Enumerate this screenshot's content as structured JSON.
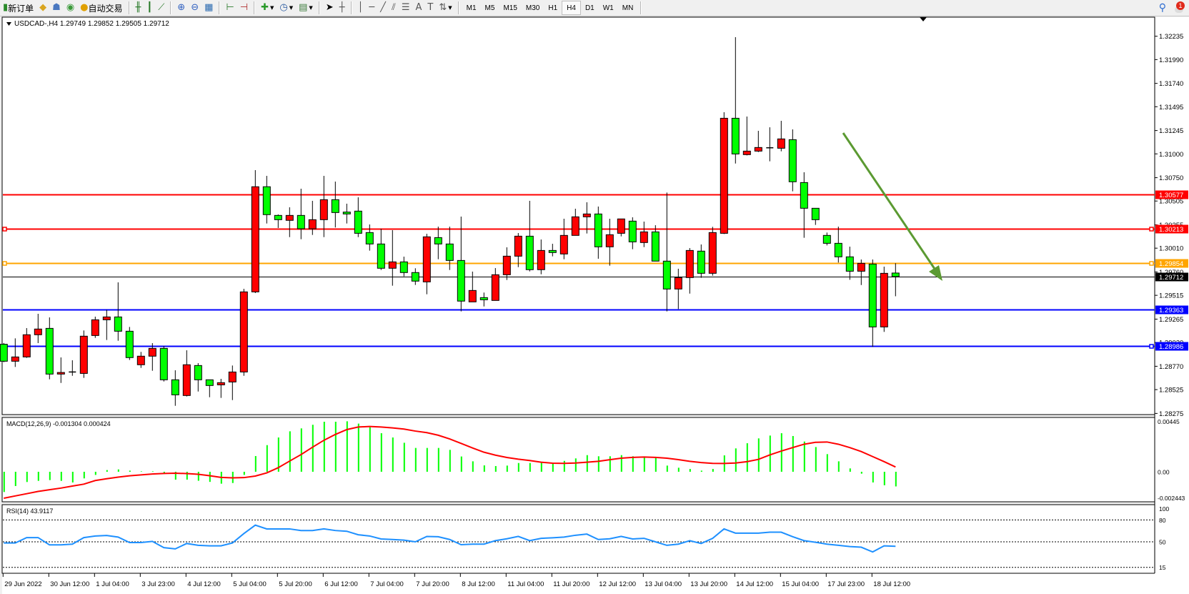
{
  "toolbar": {
    "new_order": "新订单",
    "auto_trading": "自动交易",
    "periods": [
      "M1",
      "M5",
      "M15",
      "M30",
      "H1",
      "H4",
      "D1",
      "W1",
      "MN"
    ],
    "active_period": "H4",
    "notification_count": "1"
  },
  "chart": {
    "header": "USDCAD-,H4  1.29749 1.29852 1.29505 1.29712",
    "up_color": "#ff0000",
    "down_color": "#00ff00",
    "background": "#ffffff"
  },
  "chart_data": [
    {
      "type": "candlestick",
      "symbol": "USDCAD-",
      "timeframe": "H4",
      "ylim": [
        1.28275,
        1.32235
      ],
      "y_ticks": [
        "1.32235",
        "1.31990",
        "1.31740",
        "1.31495",
        "1.31245",
        "1.31000",
        "1.30750",
        "1.30505",
        "1.30255",
        "1.30010",
        "1.29760",
        "1.29515",
        "1.29265",
        "1.29020",
        "1.28770",
        "1.28525",
        "1.28275"
      ],
      "x_tick_labels": [
        "29 Jun 2022",
        "30 Jun 12:00",
        "1 Jul 04:00",
        "3 Jul 23:00",
        "4 Jul 12:00",
        "5 Jul 04:00",
        "5 Jul 20:00",
        "6 Jul 12:00",
        "7 Jul 04:00",
        "7 Jul 20:00",
        "8 Jul 12:00",
        "11 Jul 04:00",
        "11 Jul 20:00",
        "12 Jul 12:00",
        "13 Jul 04:00",
        "13 Jul 20:00",
        "14 Jul 12:00",
        "15 Jul 04:00",
        "17 Jul 23:00",
        "18 Jul 12:00"
      ],
      "ohlc_fields": [
        "open",
        "high",
        "low",
        "close"
      ],
      "ohlc": [
        [
          1.29001,
          1.29014,
          1.28813,
          1.28823
        ],
        [
          1.28823,
          1.29063,
          1.28763,
          1.28868
        ],
        [
          1.28868,
          1.29171,
          1.28858,
          1.29101
        ],
        [
          1.29101,
          1.29321,
          1.29013,
          1.29161
        ],
        [
          1.29168,
          1.29283,
          1.28633,
          1.28688
        ],
        [
          1.28688,
          1.28863,
          1.28595,
          1.28705
        ],
        [
          1.2871,
          1.28833,
          1.2867,
          1.2871
        ],
        [
          1.28695,
          1.29146,
          1.28648,
          1.29086
        ],
        [
          1.29093,
          1.29291,
          1.29068,
          1.29258
        ],
        [
          1.29258,
          1.29363,
          1.29046,
          1.29288
        ],
        [
          1.29288,
          1.29651,
          1.29038,
          1.29138
        ],
        [
          1.29138,
          1.29183,
          1.28836,
          1.28861
        ],
        [
          1.28786,
          1.28921,
          1.28753,
          1.28876
        ],
        [
          1.28876,
          1.29013,
          1.28723,
          1.28958
        ],
        [
          1.28958,
          1.28983,
          1.2861,
          1.28628
        ],
        [
          1.28628,
          1.28728,
          1.28355,
          1.2847
        ],
        [
          1.28463,
          1.28938,
          1.28453,
          1.28786
        ],
        [
          1.28778,
          1.28803,
          1.28505,
          1.28628
        ],
        [
          1.28628,
          1.28628,
          1.28445,
          1.28568
        ],
        [
          1.28575,
          1.28638,
          1.28438,
          1.28598
        ],
        [
          1.28605,
          1.28778,
          1.28415,
          1.2871
        ],
        [
          1.2871,
          1.29583,
          1.2867,
          1.29551
        ],
        [
          1.29551,
          1.30829,
          1.29539,
          1.30655
        ],
        [
          1.30655,
          1.30769,
          1.30269,
          1.30362
        ],
        [
          1.30354,
          1.30364,
          1.30222,
          1.30309
        ],
        [
          1.30302,
          1.30439,
          1.30126,
          1.30354
        ],
        [
          1.30354,
          1.30634,
          1.30104,
          1.30214
        ],
        [
          1.30214,
          1.30507,
          1.30149,
          1.30309
        ],
        [
          1.30309,
          1.30769,
          1.30126,
          1.30519
        ],
        [
          1.30519,
          1.30709,
          1.30227,
          1.30384
        ],
        [
          1.30389,
          1.30477,
          1.30269,
          1.30369
        ],
        [
          1.30399,
          1.30544,
          1.30126,
          1.30166
        ],
        [
          1.30174,
          1.30259,
          1.29984,
          1.30054
        ],
        [
          1.30054,
          1.30214,
          1.29781,
          1.29799
        ],
        [
          1.29799,
          1.30199,
          1.29616,
          1.29866
        ],
        [
          1.29866,
          1.29921,
          1.29714,
          1.29754
        ],
        [
          1.29754,
          1.29799,
          1.29624,
          1.29664
        ],
        [
          1.29656,
          1.30161,
          1.29526,
          1.30129
        ],
        [
          1.30121,
          1.30236,
          1.29894,
          1.30054
        ],
        [
          1.30054,
          1.30236,
          1.29781,
          1.29881
        ],
        [
          1.29881,
          1.30342,
          1.29346,
          1.29454
        ],
        [
          1.29446,
          1.29764,
          1.29446,
          1.29566
        ],
        [
          1.29491,
          1.29544,
          1.29398,
          1.29468
        ],
        [
          1.29461,
          1.29801,
          1.29461,
          1.29731
        ],
        [
          1.29731,
          1.30019,
          1.29676,
          1.29926
        ],
        [
          1.29926,
          1.30169,
          1.29811,
          1.30136
        ],
        [
          1.30136,
          1.30507,
          1.29766,
          1.29784
        ],
        [
          1.29784,
          1.30101,
          1.29736,
          1.29986
        ],
        [
          1.29986,
          1.30056,
          1.29924,
          1.29964
        ],
        [
          1.29949,
          1.30319,
          1.29894,
          1.30144
        ],
        [
          1.30144,
          1.30424,
          1.30144,
          1.30339
        ],
        [
          1.30339,
          1.30492,
          1.30164,
          1.30369
        ],
        [
          1.30369,
          1.30447,
          1.29899,
          1.30024
        ],
        [
          1.30024,
          1.30319,
          1.29826,
          1.30151
        ],
        [
          1.30166,
          1.30317,
          1.30134,
          1.30317
        ],
        [
          1.30294,
          1.30334,
          1.29999,
          1.30076
        ],
        [
          1.30069,
          1.30289,
          1.30021,
          1.30181
        ],
        [
          1.30181,
          1.30251,
          1.29874,
          1.29874
        ],
        [
          1.29874,
          1.30594,
          1.29346,
          1.29581
        ],
        [
          1.29581,
          1.29794,
          1.29371,
          1.29701
        ],
        [
          1.29701,
          1.30011,
          1.29533,
          1.29986
        ],
        [
          1.29979,
          1.30049,
          1.29699,
          1.29746
        ],
        [
          1.29746,
          1.30234,
          1.29721,
          1.30174
        ],
        [
          1.30166,
          1.31437,
          1.30159,
          1.31374
        ],
        [
          1.31374,
          1.32225,
          1.30899,
          1.30999
        ],
        [
          1.30992,
          1.31392,
          1.30984,
          1.31029
        ],
        [
          1.31029,
          1.31242,
          1.31019,
          1.31067
        ],
        [
          1.31064,
          1.31279,
          1.30922,
          1.31064
        ],
        [
          1.31059,
          1.31347,
          1.31027,
          1.31157
        ],
        [
          1.31149,
          1.31257,
          1.30607,
          1.30707
        ],
        [
          1.30699,
          1.30807,
          1.30119,
          1.30429
        ],
        [
          1.30429,
          1.30429,
          1.30254,
          1.30309
        ],
        [
          1.30144,
          1.30174,
          1.30039,
          1.30061
        ],
        [
          1.30061,
          1.30236,
          1.29859,
          1.29919
        ],
        [
          1.29919,
          1.30026,
          1.29678,
          1.29768
        ],
        [
          1.29768,
          1.29891,
          1.29623,
          1.29851
        ],
        [
          1.29843,
          1.29891,
          1.28973,
          1.29183
        ],
        [
          1.29183,
          1.29816,
          1.29131,
          1.29746
        ],
        [
          1.29749,
          1.29852,
          1.29505,
          1.29712
        ]
      ],
      "horizontal_lines": [
        {
          "price": "1.30577",
          "color": "#ff0000",
          "markers": false
        },
        {
          "price": "1.30213",
          "color": "#ff0000",
          "markers": true
        },
        {
          "price": "1.29854",
          "color": "#ffa500",
          "markers": true
        },
        {
          "price": "1.29712",
          "color": "#000000",
          "markers": false
        },
        {
          "price": "1.29363",
          "color": "#0000ff",
          "markers": false
        },
        {
          "price": "1.28986",
          "color": "#0000ff",
          "markers": true
        }
      ],
      "trend_arrow": {
        "color": "#5b9a32",
        "direction": "down"
      }
    },
    {
      "type": "bar+line",
      "label": "MACD(12,26,9) -0.001304 0.000424",
      "y_ticks": [
        "0.00445",
        "0.00",
        "-0.002443"
      ],
      "ylim": [
        -0.002443,
        0.00445
      ],
      "histogram_color": "#00ff00",
      "signal_color": "#ff0000",
      "main": [
        -0.0018,
        -0.00127,
        -0.00091,
        -0.00081,
        -0.00074,
        -0.00081,
        -0.00095,
        -0.00059,
        -0.00028,
        0.00015,
        0.00021,
        0.0001,
        4e-05,
        4e-05,
        -0.00017,
        -0.0007,
        -0.0007,
        -0.0008,
        -0.0009,
        -0.00106,
        -0.001,
        -0.00028,
        0.0014,
        0.00237,
        0.00305,
        0.0036,
        0.00386,
        0.00418,
        0.00445,
        0.00445,
        0.00449,
        0.00428,
        0.00396,
        0.00343,
        0.00305,
        0.00258,
        0.00212,
        0.00212,
        0.00212,
        0.00195,
        0.00136,
        0.00093,
        0.00057,
        0.00051,
        0.00055,
        0.00078,
        0.00078,
        0.00083,
        0.00072,
        0.00097,
        0.00119,
        0.00148,
        0.00138,
        0.00138,
        0.00148,
        0.00138,
        0.00131,
        0.00127,
        0.00055,
        0.00036,
        0.00025,
        0.0001,
        0.00025,
        0.00146,
        0.00208,
        0.00254,
        0.00297,
        0.00322,
        0.00343,
        0.00318,
        0.00269,
        0.0022,
        0.00157,
        0.00093,
        0.0003,
        -0.00017,
        -0.00095,
        -0.0012,
        -0.001304
      ],
      "signal": [
        -0.00235,
        -0.00215,
        -0.00195,
        -0.00175,
        -0.0016,
        -0.00145,
        -0.00127,
        -0.0011,
        -0.00078,
        -0.00062,
        -0.00048,
        -0.00036,
        -0.00028,
        -0.0002,
        -0.00015,
        -0.00013,
        -0.00016,
        -0.00022,
        -0.00035,
        -0.0005,
        -0.00054,
        -0.00052,
        -0.00038,
        -0.0001,
        0.00036,
        0.00095,
        0.00153,
        0.00218,
        0.0028,
        0.00332,
        0.00375,
        0.00398,
        0.00403,
        0.00398,
        0.0039,
        0.0038,
        0.00362,
        0.00348,
        0.00325,
        0.00292,
        0.00252,
        0.00212,
        0.00174,
        0.00148,
        0.00127,
        0.00112,
        0.001,
        0.00085,
        0.00076,
        0.00075,
        0.00078,
        0.00085,
        0.00093,
        0.00107,
        0.00121,
        0.00128,
        0.00131,
        0.00128,
        0.00121,
        0.00108,
        0.00093,
        0.00082,
        0.00075,
        0.00074,
        0.00078,
        0.0009,
        0.0011,
        0.0015,
        0.00184,
        0.00215,
        0.00245,
        0.00262,
        0.00265,
        0.00245,
        0.00215,
        0.0018,
        0.00135,
        0.0009,
        0.000424
      ]
    },
    {
      "type": "line",
      "label": "RSI(14) 43.9117",
      "y_ticks": [
        "100",
        "80",
        "50",
        "15"
      ],
      "levels": [
        80,
        50,
        15
      ],
      "ylim": [
        0,
        100
      ],
      "color": "#1e90ff",
      "values": [
        48.4,
        48.4,
        55.8,
        55.8,
        45.8,
        45.8,
        46.8,
        55.8,
        58,
        58.7,
        56.5,
        49,
        49,
        50.6,
        42,
        40.3,
        47.7,
        45.2,
        44.5,
        44.5,
        48.4,
        61.3,
        72.9,
        67.7,
        67.7,
        67.7,
        65.5,
        65.5,
        67.7,
        65.5,
        64.5,
        59.7,
        58,
        53.9,
        53.2,
        52.3,
        50,
        57.4,
        57,
        53.2,
        46.1,
        46.8,
        46.8,
        51.6,
        54.2,
        57.4,
        51.6,
        54.8,
        55.5,
        56.5,
        59,
        60.6,
        53.2,
        54.2,
        57.4,
        53.9,
        54.8,
        50,
        45.2,
        46.8,
        51.6,
        47.7,
        54.8,
        67.7,
        61.9,
        61.9,
        61.9,
        63.2,
        63.2,
        57,
        51.6,
        49.4,
        46.8,
        45.2,
        43.5,
        42.6,
        36.1,
        44.5,
        43.9117
      ]
    }
  ]
}
